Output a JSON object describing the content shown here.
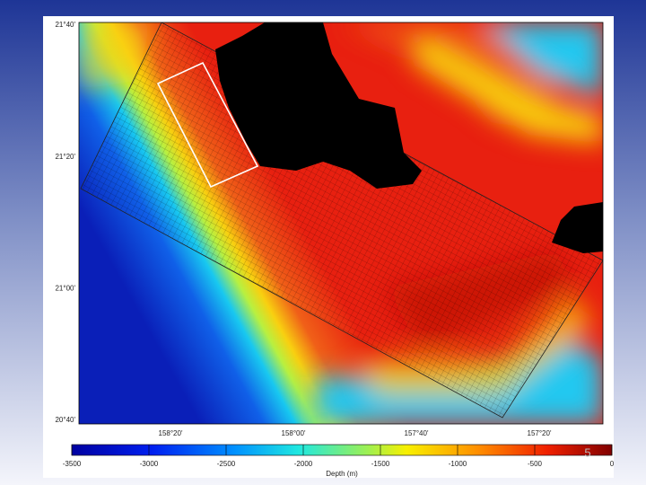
{
  "map": {
    "lat_labels": [
      "21°40'",
      "21°20'",
      "21°00'",
      "20°40'"
    ],
    "lon_labels": [
      "158°20'",
      "158°00'",
      "157°40'",
      "157°20'"
    ]
  },
  "colorbar": {
    "label": "Depth (m)",
    "lim": [
      -3500,
      0
    ],
    "ticks": [
      -3500,
      -3000,
      -2500,
      -2000,
      -1500,
      -1000,
      -500,
      0
    ]
  },
  "slide_number": "5"
}
